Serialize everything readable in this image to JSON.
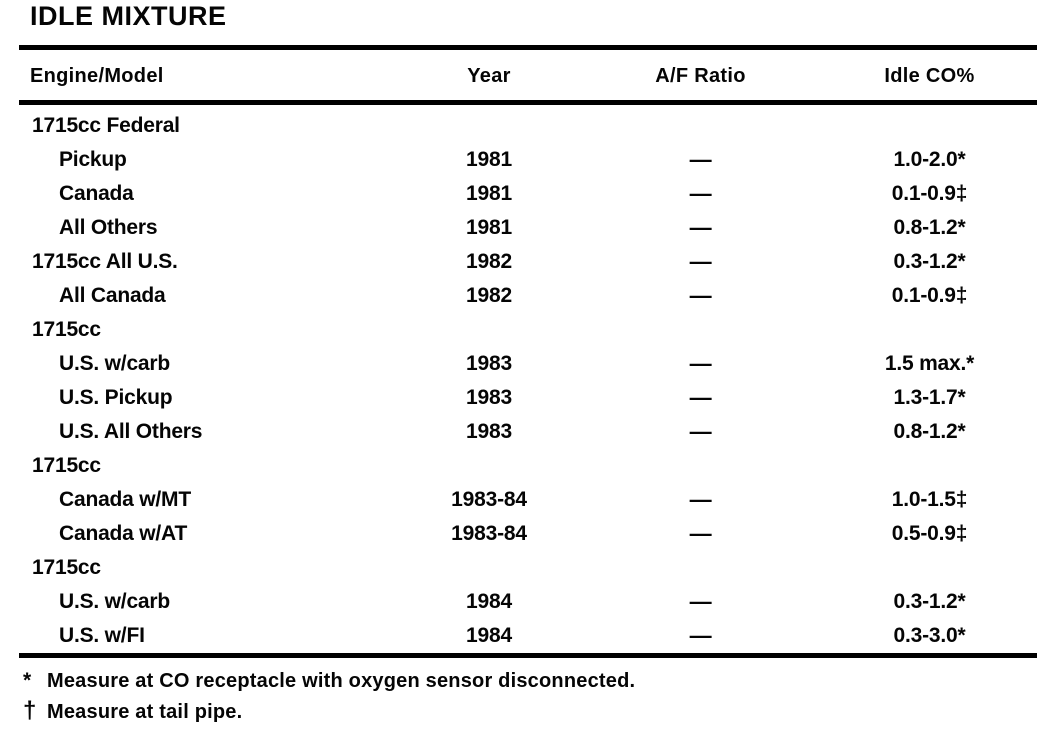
{
  "title": "IDLE MIXTURE",
  "table": {
    "columns": [
      "Engine/Model",
      "Year",
      "A/F Ratio",
      "Idle CO%"
    ],
    "rows": [
      {
        "model": "1715cc Federal",
        "year": "",
        "af": "",
        "co": ""
      },
      {
        "model": "Pickup",
        "year": "1981",
        "af": "—",
        "co": "1.0-2.0*"
      },
      {
        "model": "Canada",
        "year": "1981",
        "af": "—",
        "co": "0.1-0.9‡"
      },
      {
        "model": "All Others",
        "year": "1981",
        "af": "—",
        "co": "0.8-1.2*"
      },
      {
        "model": "1715cc All U.S.",
        "year": "1982",
        "af": "—",
        "co": "0.3-1.2*"
      },
      {
        "model": "All Canada",
        "year": "1982",
        "af": "—",
        "co": "0.1-0.9‡"
      },
      {
        "model": "1715cc",
        "year": "",
        "af": "",
        "co": ""
      },
      {
        "model": "U.S. w/carb",
        "year": "1983",
        "af": "—",
        "co": "1.5 max.*"
      },
      {
        "model": "U.S. Pickup",
        "year": "1983",
        "af": "—",
        "co": "1.3-1.7*"
      },
      {
        "model": "U.S. All Others",
        "year": "1983",
        "af": "—",
        "co": "0.8-1.2*"
      },
      {
        "model": "1715cc",
        "year": "",
        "af": "",
        "co": ""
      },
      {
        "model": "Canada w/MT",
        "year": "1983-84",
        "af": "—",
        "co": "1.0-1.5‡"
      },
      {
        "model": "Canada w/AT",
        "year": "1983-84",
        "af": "—",
        "co": "0.5-0.9‡"
      },
      {
        "model": "1715cc",
        "year": "",
        "af": "",
        "co": ""
      },
      {
        "model": "U.S. w/carb",
        "year": "1984",
        "af": "—",
        "co": "0.3-1.2*"
      },
      {
        "model": "U.S. w/FI",
        "year": "1984",
        "af": "—",
        "co": "0.3-3.0*"
      }
    ]
  },
  "footnotes": [
    {
      "marker": "*",
      "text": "Measure at CO receptacle with oxygen sensor disconnected."
    },
    {
      "marker": "†",
      "text": "Measure at tail pipe."
    }
  ]
}
